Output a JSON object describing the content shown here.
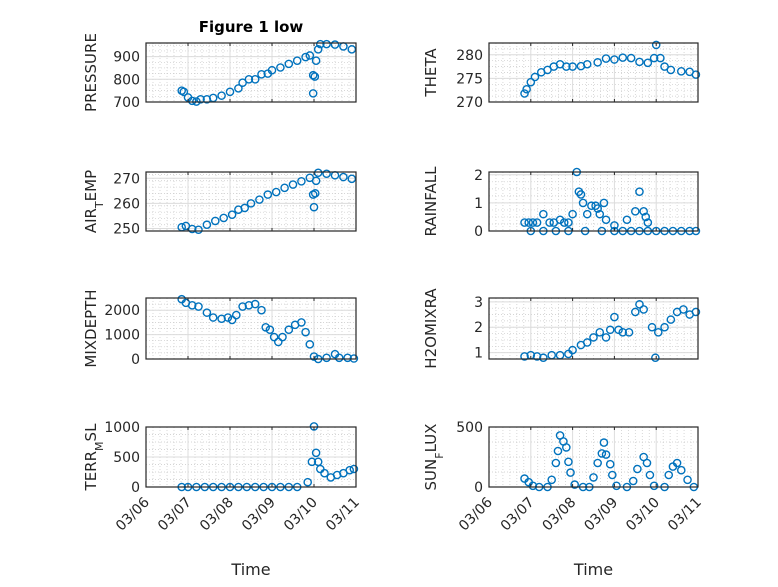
{
  "figure_title": "Figure 1 low",
  "marker_color": "#0072BD",
  "chart_data": [
    {
      "type": "scatter",
      "title": "Figure 1 low",
      "ylabel": "PRESSURE",
      "ylabel_sub": null,
      "ylim": [
        700,
        960
      ],
      "yticks": [
        700,
        800,
        900
      ],
      "xlim": [
        0,
        5
      ],
      "xticks": [
        "03/06",
        "03/07",
        "03/08",
        "03/09",
        "03/10",
        "03/11"
      ],
      "xlabel": "",
      "points": [
        [
          0.85,
          750
        ],
        [
          0.9,
          745
        ],
        [
          1.0,
          720
        ],
        [
          1.1,
          705
        ],
        [
          1.2,
          702
        ],
        [
          1.3,
          712
        ],
        [
          1.45,
          712
        ],
        [
          1.6,
          718
        ],
        [
          1.8,
          728
        ],
        [
          2.0,
          745
        ],
        [
          2.2,
          760
        ],
        [
          2.3,
          785
        ],
        [
          2.45,
          800
        ],
        [
          2.6,
          800
        ],
        [
          2.75,
          822
        ],
        [
          2.9,
          825
        ],
        [
          3.0,
          840
        ],
        [
          3.2,
          852
        ],
        [
          3.4,
          868
        ],
        [
          3.6,
          882
        ],
        [
          3.8,
          898
        ],
        [
          3.9,
          905
        ],
        [
          3.98,
          818
        ],
        [
          4.02,
          812
        ],
        [
          3.98,
          738
        ],
        [
          4.05,
          882
        ],
        [
          4.1,
          932
        ],
        [
          4.15,
          955
        ],
        [
          4.3,
          955
        ],
        [
          4.5,
          953
        ],
        [
          4.7,
          945
        ],
        [
          4.9,
          932
        ]
      ]
    },
    {
      "type": "scatter",
      "ylabel": "THETA",
      "ylabel_sub": null,
      "ylim": [
        270,
        282.5
      ],
      "yticks": [
        270,
        275,
        280
      ],
      "xlim": [
        0,
        5
      ],
      "xticks": [
        "03/06",
        "03/07",
        "03/08",
        "03/09",
        "03/10",
        "03/11"
      ],
      "xlabel": "",
      "points": [
        [
          0.85,
          271.8
        ],
        [
          0.9,
          272.7
        ],
        [
          1.0,
          274.2
        ],
        [
          1.1,
          275.3
        ],
        [
          1.25,
          276.3
        ],
        [
          1.4,
          276.8
        ],
        [
          1.55,
          277.5
        ],
        [
          1.7,
          278.0
        ],
        [
          1.85,
          277.5
        ],
        [
          2.0,
          277.5
        ],
        [
          2.2,
          277.6
        ],
        [
          2.35,
          278.0
        ],
        [
          2.6,
          278.4
        ],
        [
          2.8,
          279.2
        ],
        [
          3.0,
          279.0
        ],
        [
          3.2,
          279.4
        ],
        [
          3.4,
          279.3
        ],
        [
          3.6,
          278.5
        ],
        [
          3.8,
          278.3
        ],
        [
          3.95,
          279.3
        ],
        [
          4.0,
          282.1
        ],
        [
          4.1,
          279.3
        ],
        [
          4.2,
          277.5
        ],
        [
          4.35,
          276.8
        ],
        [
          4.6,
          276.5
        ],
        [
          4.8,
          276.4
        ],
        [
          4.95,
          275.8
        ]
      ]
    },
    {
      "type": "scatter",
      "ylabel": "AIR",
      "ylabel_sub": "T",
      "ylabel_rest": "EMP",
      "ylim": [
        249,
        272.5
      ],
      "yticks": [
        250,
        260,
        270
      ],
      "xlim": [
        0,
        5
      ],
      "xticks": [
        "03/06",
        "03/07",
        "03/08",
        "03/09",
        "03/10",
        "03/11"
      ],
      "xlabel": "",
      "points": [
        [
          0.85,
          250.5
        ],
        [
          0.95,
          251.0
        ],
        [
          1.1,
          249.8
        ],
        [
          1.25,
          249.5
        ],
        [
          1.45,
          251.5
        ],
        [
          1.65,
          253.0
        ],
        [
          1.85,
          254.2
        ],
        [
          2.05,
          255.5
        ],
        [
          2.2,
          257.5
        ],
        [
          2.35,
          258.2
        ],
        [
          2.5,
          260.0
        ],
        [
          2.7,
          261.5
        ],
        [
          2.9,
          263.5
        ],
        [
          3.1,
          264.5
        ],
        [
          3.3,
          266.2
        ],
        [
          3.5,
          267.5
        ],
        [
          3.7,
          268.8
        ],
        [
          3.9,
          270.2
        ],
        [
          3.98,
          263.5
        ],
        [
          4.03,
          264.0
        ],
        [
          4.0,
          258.5
        ],
        [
          4.05,
          269.0
        ],
        [
          4.1,
          272.2
        ],
        [
          4.3,
          271.8
        ],
        [
          4.5,
          271.2
        ],
        [
          4.7,
          270.5
        ],
        [
          4.9,
          269.8
        ]
      ]
    },
    {
      "type": "scatter",
      "ylabel": "RAINFALL",
      "ylabel_sub": null,
      "ylim": [
        0,
        2.1
      ],
      "yticks": [
        0,
        1,
        2
      ],
      "xlim": [
        0,
        5
      ],
      "xticks": [
        "03/06",
        "03/07",
        "03/08",
        "03/09",
        "03/10",
        "03/11"
      ],
      "xlabel": "",
      "points": [
        [
          0.85,
          0.3
        ],
        [
          0.95,
          0.3
        ],
        [
          1.05,
          0.3
        ],
        [
          1.15,
          0.3
        ],
        [
          1.3,
          0.6
        ],
        [
          1.45,
          0.3
        ],
        [
          1.55,
          0.3
        ],
        [
          1.7,
          0.4
        ],
        [
          1.8,
          0.3
        ],
        [
          1.9,
          0.3
        ],
        [
          2.0,
          0.6
        ],
        [
          2.1,
          2.1
        ],
        [
          2.15,
          1.4
        ],
        [
          2.2,
          1.3
        ],
        [
          2.25,
          1.0
        ],
        [
          2.35,
          0.6
        ],
        [
          2.45,
          0.9
        ],
        [
          2.55,
          0.9
        ],
        [
          2.6,
          0.8
        ],
        [
          2.65,
          0.6
        ],
        [
          2.75,
          1.0
        ],
        [
          2.8,
          0.4
        ],
        [
          3.0,
          0.2
        ],
        [
          3.3,
          0.4
        ],
        [
          3.5,
          0.7
        ],
        [
          3.6,
          1.4
        ],
        [
          3.7,
          0.7
        ],
        [
          3.75,
          0.5
        ],
        [
          3.8,
          0.3
        ],
        [
          1.0,
          0.0
        ],
        [
          1.3,
          0.0
        ],
        [
          1.6,
          0.0
        ],
        [
          1.9,
          0.0
        ],
        [
          2.3,
          0.0
        ],
        [
          2.7,
          0.0
        ],
        [
          3.0,
          0.0
        ],
        [
          3.2,
          0.0
        ],
        [
          3.4,
          0.0
        ],
        [
          3.6,
          0.0
        ],
        [
          3.8,
          0.0
        ],
        [
          4.0,
          0.0
        ],
        [
          4.2,
          0.0
        ],
        [
          4.4,
          0.0
        ],
        [
          4.6,
          0.0
        ],
        [
          4.8,
          0.0
        ],
        [
          4.95,
          0.0
        ]
      ]
    },
    {
      "type": "scatter",
      "ylabel": "MIXDEPTH",
      "ylabel_sub": null,
      "ylim": [
        0,
        2500
      ],
      "yticks": [
        0,
        1000,
        2000
      ],
      "xlim": [
        0,
        5
      ],
      "xticks": [
        "03/06",
        "03/07",
        "03/08",
        "03/09",
        "03/10",
        "03/11"
      ],
      "xlabel": "",
      "points": [
        [
          0.85,
          2450
        ],
        [
          0.95,
          2300
        ],
        [
          1.1,
          2200
        ],
        [
          1.25,
          2150
        ],
        [
          1.45,
          1900
        ],
        [
          1.6,
          1700
        ],
        [
          1.8,
          1650
        ],
        [
          1.95,
          1700
        ],
        [
          2.05,
          1600
        ],
        [
          2.15,
          1800
        ],
        [
          2.3,
          2150
        ],
        [
          2.45,
          2200
        ],
        [
          2.6,
          2250
        ],
        [
          2.75,
          2000
        ],
        [
          2.85,
          1300
        ],
        [
          2.95,
          1200
        ],
        [
          3.05,
          900
        ],
        [
          3.15,
          700
        ],
        [
          3.25,
          900
        ],
        [
          3.4,
          1200
        ],
        [
          3.55,
          1400
        ],
        [
          3.7,
          1500
        ],
        [
          3.8,
          1100
        ],
        [
          3.9,
          600
        ],
        [
          4.0,
          100
        ],
        [
          4.1,
          0
        ],
        [
          4.3,
          50
        ],
        [
          4.5,
          200
        ],
        [
          4.6,
          50
        ],
        [
          4.8,
          50
        ],
        [
          4.95,
          20
        ]
      ]
    },
    {
      "type": "scatter",
      "ylabel": "H2OMIXRA",
      "ylabel_sub": null,
      "ylim": [
        0.75,
        3.15
      ],
      "yticks": [
        1,
        2,
        3
      ],
      "xlim": [
        0,
        5
      ],
      "xticks": [
        "03/06",
        "03/07",
        "03/08",
        "03/09",
        "03/10",
        "03/11"
      ],
      "xlabel": "",
      "points": [
        [
          0.85,
          0.85
        ],
        [
          1.0,
          0.9
        ],
        [
          1.15,
          0.85
        ],
        [
          1.3,
          0.8
        ],
        [
          1.5,
          0.9
        ],
        [
          1.7,
          0.9
        ],
        [
          1.9,
          0.95
        ],
        [
          2.0,
          1.1
        ],
        [
          2.2,
          1.3
        ],
        [
          2.35,
          1.4
        ],
        [
          2.5,
          1.6
        ],
        [
          2.65,
          1.8
        ],
        [
          2.8,
          1.6
        ],
        [
          2.9,
          1.9
        ],
        [
          3.0,
          2.4
        ],
        [
          3.1,
          1.9
        ],
        [
          3.2,
          1.8
        ],
        [
          3.35,
          1.8
        ],
        [
          3.5,
          2.6
        ],
        [
          3.6,
          2.9
        ],
        [
          3.7,
          2.7
        ],
        [
          3.9,
          2.0
        ],
        [
          3.98,
          0.8
        ],
        [
          4.05,
          1.8
        ],
        [
          4.2,
          2.0
        ],
        [
          4.35,
          2.3
        ],
        [
          4.5,
          2.6
        ],
        [
          4.65,
          2.7
        ],
        [
          4.8,
          2.5
        ],
        [
          4.95,
          2.6
        ]
      ]
    },
    {
      "type": "scatter",
      "ylabel": "TERR",
      "ylabel_sub": "M",
      "ylabel_rest": "SL",
      "ylim": [
        0,
        1000
      ],
      "yticks": [
        0,
        500,
        1000
      ],
      "xlim": [
        0,
        5
      ],
      "xticks": [
        "03/06",
        "03/07",
        "03/08",
        "03/09",
        "03/10",
        "03/11"
      ],
      "xlabel": "Time",
      "points": [
        [
          0.85,
          0
        ],
        [
          1.0,
          0
        ],
        [
          1.2,
          0
        ],
        [
          1.4,
          0
        ],
        [
          1.6,
          0
        ],
        [
          1.8,
          0
        ],
        [
          2.0,
          0
        ],
        [
          2.2,
          0
        ],
        [
          2.4,
          0
        ],
        [
          2.6,
          0
        ],
        [
          2.8,
          0
        ],
        [
          3.0,
          0
        ],
        [
          3.2,
          0
        ],
        [
          3.4,
          0
        ],
        [
          3.6,
          0
        ],
        [
          3.85,
          80
        ],
        [
          3.95,
          420
        ],
        [
          4.0,
          1010
        ],
        [
          4.05,
          570
        ],
        [
          4.1,
          420
        ],
        [
          4.15,
          300
        ],
        [
          4.25,
          230
        ],
        [
          4.4,
          160
        ],
        [
          4.55,
          200
        ],
        [
          4.7,
          230
        ],
        [
          4.85,
          280
        ],
        [
          4.95,
          300
        ]
      ]
    },
    {
      "type": "scatter",
      "ylabel": "SUN",
      "ylabel_sub": "F",
      "ylabel_rest": "LUX",
      "ylim": [
        0,
        500
      ],
      "yticks": [
        0,
        500
      ],
      "xlim": [
        0,
        5
      ],
      "xticks": [
        "03/06",
        "03/07",
        "03/08",
        "03/09",
        "03/10",
        "03/11"
      ],
      "xlabel": "Time",
      "points": [
        [
          0.85,
          70
        ],
        [
          0.95,
          40
        ],
        [
          1.05,
          10
        ],
        [
          1.2,
          0
        ],
        [
          1.4,
          0
        ],
        [
          1.5,
          60
        ],
        [
          1.6,
          200
        ],
        [
          1.65,
          300
        ],
        [
          1.7,
          430
        ],
        [
          1.78,
          380
        ],
        [
          1.85,
          330
        ],
        [
          1.9,
          210
        ],
        [
          1.95,
          120
        ],
        [
          2.05,
          20
        ],
        [
          2.25,
          0
        ],
        [
          2.4,
          0
        ],
        [
          2.5,
          80
        ],
        [
          2.6,
          200
        ],
        [
          2.7,
          280
        ],
        [
          2.75,
          370
        ],
        [
          2.8,
          270
        ],
        [
          2.9,
          190
        ],
        [
          2.95,
          100
        ],
        [
          3.05,
          10
        ],
        [
          3.3,
          0
        ],
        [
          3.45,
          50
        ],
        [
          3.55,
          150
        ],
        [
          3.7,
          250
        ],
        [
          3.78,
          200
        ],
        [
          3.85,
          100
        ],
        [
          3.95,
          10
        ],
        [
          4.2,
          0
        ],
        [
          4.3,
          100
        ],
        [
          4.4,
          170
        ],
        [
          4.5,
          200
        ],
        [
          4.6,
          140
        ],
        [
          4.75,
          60
        ],
        [
          4.9,
          0
        ]
      ]
    }
  ]
}
